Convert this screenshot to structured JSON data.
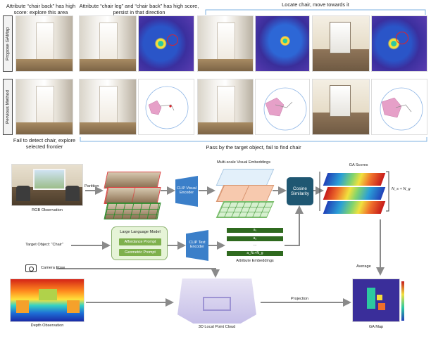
{
  "top_panel": {
    "caption_left": "Attribute “chair back” has high score: explore this area",
    "caption_mid": "Attribute “chair leg” and “chair  back” has high score, persist in that direction",
    "caption_right": "Locate chair, move towards it",
    "row1_label": "Propose GAMap",
    "row2_label": "Pervious Method",
    "caption_bottom_left": "Fail to detect chair, explore selected frontier",
    "caption_bottom_right": "Pass by the target object, fail to find chair"
  },
  "pipeline": {
    "rgb_label": "RGB Observation",
    "partition_label": "Partition",
    "clip_visual_label": "CLIP Visual Encoder",
    "multiscale_label": "Multi-scale Visual Embeddings",
    "cosine_label": "Cosine Similarity",
    "ga_scores_label": "GA Scores",
    "ns_ng_label": "N_s + N_g",
    "target_label": "Target Object: “Chair”",
    "llm_label": "Large Language Model",
    "affordance_prompt": "Affordance Prompt",
    "geometric_prompt": "Geometric Prompt",
    "clip_text_label": "CLIP Text Encoder",
    "attr_embed_label": "Attribute Embeddings",
    "attr_rows": [
      "a₁",
      "a₂",
      "...",
      "a_Nₛ+N_g"
    ],
    "camera_pose_label": "Camera Pose",
    "average_label": "Average",
    "depth_label": "Depth Observation",
    "pointcloud_label": "3D Local Point Cloud",
    "projection_label": "Projection",
    "gamap_label": "GA Map"
  },
  "colors": {
    "clip_blue": "#3b7fc9",
    "cosine_teal": "#1f5772",
    "attr_green": "#2f6a1f",
    "llm_bg": "#e6f4d7",
    "circle_red": "#e0222a"
  }
}
